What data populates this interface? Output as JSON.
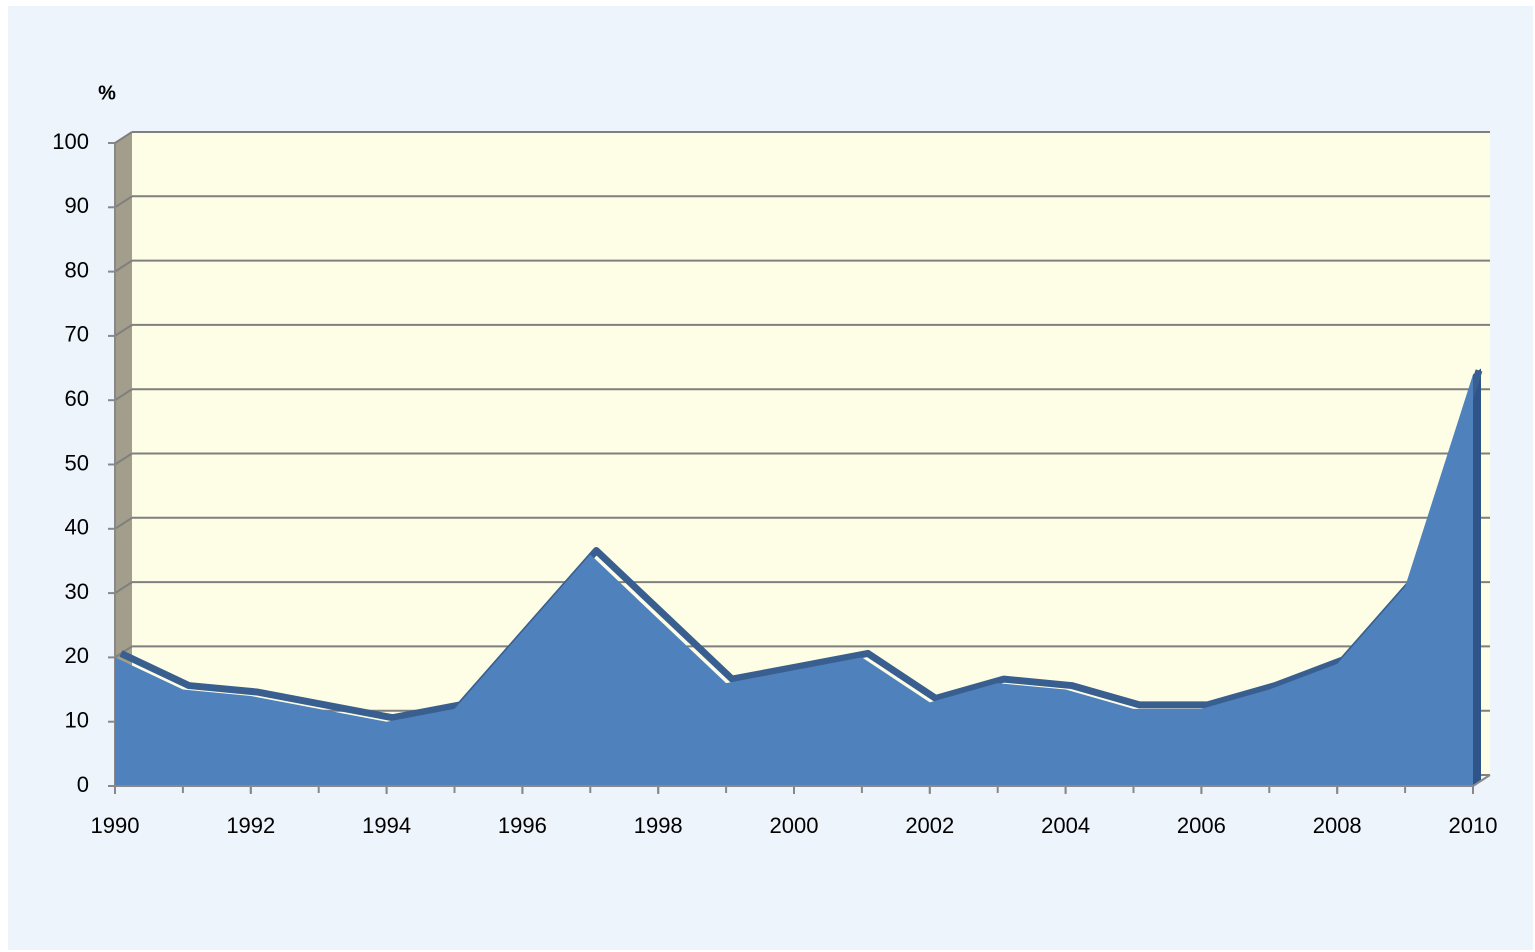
{
  "chart_data": {
    "type": "area",
    "y_label": "%",
    "x": [
      1990,
      1991,
      1992,
      1993,
      1994,
      1995,
      1996,
      1997,
      1998,
      1999,
      2000,
      2001,
      2002,
      2003,
      2004,
      2005,
      2006,
      2007,
      2008,
      2009,
      2010
    ],
    "values": [
      20,
      15,
      14,
      12,
      10,
      12,
      24,
      36,
      26,
      16,
      18,
      20,
      13,
      16,
      15,
      12,
      12,
      15,
      19,
      31,
      64
    ],
    "color": "#4f81bd",
    "xlim": [
      1990,
      2010
    ],
    "xticks": [
      1990,
      1992,
      1994,
      1996,
      1998,
      2000,
      2002,
      2004,
      2006,
      2008,
      2010
    ],
    "ylim": [
      0,
      100
    ],
    "yticks": [
      0,
      10,
      20,
      30,
      40,
      50,
      60,
      70,
      80,
      90,
      100
    ],
    "grid": true
  }
}
